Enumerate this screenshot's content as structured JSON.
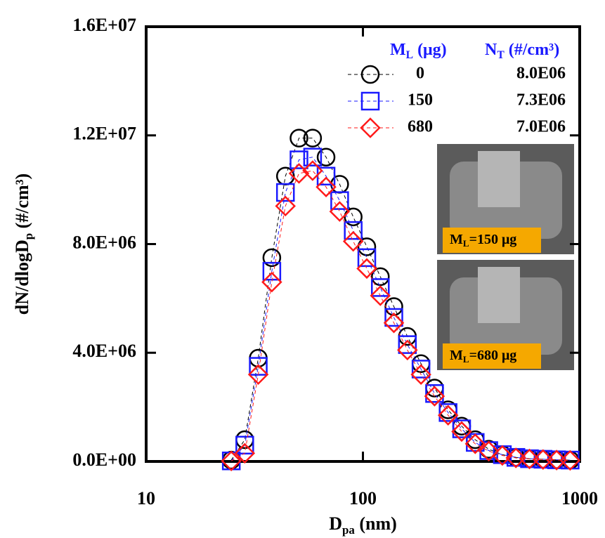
{
  "chart_data": {
    "type": "line",
    "x_scale": "log",
    "xlim": [
      10,
      1000
    ],
    "xticks": [
      10,
      100,
      1000
    ],
    "ylim": [
      0,
      16000000
    ],
    "yticks": [
      {
        "value": 0,
        "label": "0.0E+00"
      },
      {
        "value": 4000000,
        "label": "4.0E+06"
      },
      {
        "value": 8000000,
        "label": "8.0E+06"
      },
      {
        "value": 12000000,
        "label": "1.2E+07"
      },
      {
        "value": 16000000,
        "label": "1.6E+07"
      }
    ],
    "x_label": {
      "text": "D",
      "sub": "pa",
      "rest": " (nm)"
    },
    "y_label": {
      "text": "dN/dlogD",
      "sub": "p",
      "rest": " (#/cm³)"
    },
    "legend_headers": [
      {
        "text": "M",
        "sub": "L",
        "rest": " (μg)"
      },
      {
        "text": "N",
        "sub": "T",
        "rest": " (#/cm³)"
      }
    ],
    "annotations": [
      {
        "text": "M",
        "sub": "L",
        "rest": "=150 μg"
      },
      {
        "text": "M",
        "sub": "L",
        "rest": "=680 μg"
      }
    ],
    "x": [
      24.7,
      28.5,
      32.9,
      38.0,
      43.9,
      50.7,
      58.6,
      67.6,
      78.1,
      90.2,
      104.2,
      120.3,
      138.9,
      160.4,
      185.3,
      214.0,
      247.1,
      285.4,
      329.6,
      380.7,
      439.7,
      507.8,
      586.5,
      677.4,
      782.3,
      903.5
    ],
    "series": [
      {
        "name": "0",
        "color": "#000000",
        "marker": "circle",
        "total": {
          "value": 8000000,
          "label": "8.0E06"
        },
        "values": [
          50000.0,
          800000.0,
          3800000.0,
          7500000.0,
          10500000.0,
          11900000.0,
          11900000.0,
          11200000.0,
          10200000.0,
          9000000.0,
          7900000.0,
          6800000.0,
          5700000.0,
          4600000.0,
          3600000.0,
          2700000.0,
          1900000.0,
          1300000.0,
          800000.0,
          450000.0,
          250000.0,
          150000.0,
          100000.0,
          80000.0,
          60000.0,
          50000.0
        ]
      },
      {
        "name": "150",
        "color": "#1a1aff",
        "marker": "square",
        "total": {
          "value": 7300000,
          "label": "7.3E06"
        },
        "values": [
          20000.0,
          600000.0,
          3500000.0,
          7000000.0,
          9900000.0,
          11100000.0,
          11200000.0,
          10500000.0,
          9600000.0,
          8500000.0,
          7500000.0,
          6400000.0,
          5300000.0,
          4300000.0,
          3400000.0,
          2500000.0,
          1800000.0,
          1200000.0,
          700000.0,
          400000.0,
          250000.0,
          150000.0,
          100000.0,
          80000.0,
          60000.0,
          50000.0
        ]
      },
      {
        "name": "680",
        "color": "#ff1a1a",
        "marker": "diamond",
        "total": {
          "value": 7000000,
          "label": "7.0E06"
        },
        "values": [
          20000.0,
          300000.0,
          3200000.0,
          6600000.0,
          9400000.0,
          10600000.0,
          10700000.0,
          10100000.0,
          9200000.0,
          8100000.0,
          7100000.0,
          6100000.0,
          5100000.0,
          4100000.0,
          3200000.0,
          2400000.0,
          1700000.0,
          1100000.0,
          650000.0,
          380000.0,
          220000.0,
          130000.0,
          90000.0,
          70000.0,
          50000.0,
          40000.0
        ]
      }
    ]
  }
}
